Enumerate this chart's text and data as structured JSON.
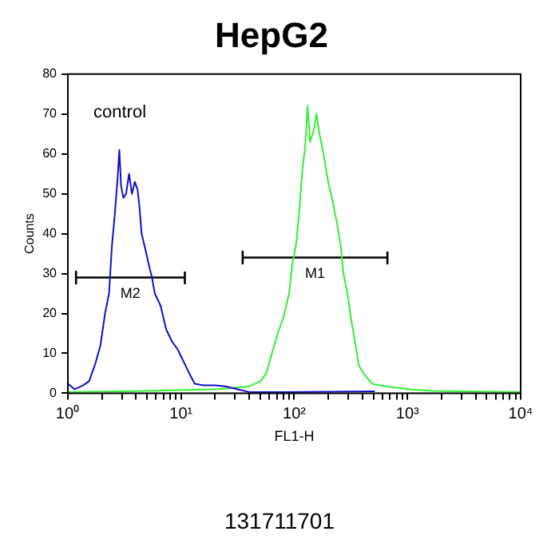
{
  "chart_data": {
    "type": "line",
    "title": "HepG2",
    "xlabel": "FL1-H",
    "ylabel": "Counts",
    "log": "x",
    "grid": false,
    "legend": false,
    "marker": "none",
    "line_style": "solid",
    "xlim": [
      1,
      10000
    ],
    "ylim": [
      0,
      80
    ],
    "xticks": [
      {
        "value": 1,
        "label": "10⁰"
      },
      {
        "value": 2,
        "label": null
      },
      {
        "value": 3,
        "label": null
      },
      {
        "value": 4,
        "label": null
      },
      {
        "value": 5,
        "label": null
      },
      {
        "value": 6,
        "label": null
      },
      {
        "value": 7,
        "label": null
      },
      {
        "value": 8,
        "label": null
      },
      {
        "value": 9,
        "label": null
      },
      {
        "value": 10,
        "label": "10¹"
      },
      {
        "value": 20,
        "label": null
      },
      {
        "value": 30,
        "label": null
      },
      {
        "value": 40,
        "label": null
      },
      {
        "value": 50,
        "label": null
      },
      {
        "value": 60,
        "label": null
      },
      {
        "value": 70,
        "label": null
      },
      {
        "value": 80,
        "label": null
      },
      {
        "value": 90,
        "label": null
      },
      {
        "value": 100,
        "label": "10²"
      },
      {
        "value": 200,
        "label": null
      },
      {
        "value": 300,
        "label": null
      },
      {
        "value": 400,
        "label": null
      },
      {
        "value": 500,
        "label": null
      },
      {
        "value": 600,
        "label": null
      },
      {
        "value": 700,
        "label": null
      },
      {
        "value": 800,
        "label": null
      },
      {
        "value": 900,
        "label": null
      },
      {
        "value": 1000,
        "label": "10³"
      },
      {
        "value": 2000,
        "label": null
      },
      {
        "value": 3000,
        "label": null
      },
      {
        "value": 4000,
        "label": null
      },
      {
        "value": 5000,
        "label": null
      },
      {
        "value": 6000,
        "label": null
      },
      {
        "value": 7000,
        "label": null
      },
      {
        "value": 8000,
        "label": null
      },
      {
        "value": 9000,
        "label": null
      },
      {
        "value": 10000,
        "label": "10⁴"
      }
    ],
    "yticks": [
      0,
      10,
      20,
      30,
      40,
      50,
      60,
      70,
      80
    ],
    "series": [
      {
        "color": "#1010c8",
        "x": [
          1,
          1.15,
          1.37,
          1.54,
          1.73,
          1.94,
          2.13,
          2.31,
          2.45,
          2.6,
          2.75,
          2.85,
          2.95,
          3.09,
          3.27,
          3.47,
          3.68,
          3.9,
          4.13,
          4.28,
          4.48,
          4.75,
          5.21,
          5.53,
          5.86,
          6.58,
          7.39,
          8.3,
          9.33,
          10.5,
          11.8,
          13.2,
          15.7,
          19.9,
          25.1,
          31.6,
          39.9,
          90,
          515
        ],
        "values": [
          2.4,
          1,
          2,
          3,
          7,
          12,
          20,
          25,
          37,
          45,
          54,
          61,
          52,
          49,
          50,
          55,
          50,
          53,
          51,
          47,
          40,
          37,
          32,
          29,
          25,
          22,
          16,
          13,
          11,
          8,
          5,
          2.4,
          2,
          2,
          1.7,
          1,
          0.3,
          0.3,
          0.5
        ]
      },
      {
        "color": "#33ee33",
        "x": [
          1,
          4.9,
          19.9,
          39.9,
          50.3,
          56.6,
          63.5,
          71.4,
          80.2,
          90.1,
          95.5,
          103.5,
          111,
          118,
          125,
          131,
          138,
          149,
          157,
          167,
          181,
          199,
          215,
          237,
          257,
          272,
          295,
          316,
          343,
          372,
          408,
          486,
          650,
          1035,
          1648,
          10000
        ],
        "values": [
          0.3,
          0.6,
          1,
          1.7,
          3,
          5,
          10,
          15,
          19,
          25,
          32,
          37,
          46,
          56,
          62,
          72,
          63,
          66,
          70,
          65,
          60,
          53,
          49,
          43,
          37,
          30,
          25,
          19,
          13,
          7,
          5,
          2.4,
          1.7,
          1,
          0.6,
          0.3
        ]
      },
      {
        "name": "M2",
        "color": "#000000",
        "x": [
          1.18,
          1.18,
          1.18,
          10.8,
          10.8,
          10.8
        ],
        "values": [
          30.5,
          27.5,
          29,
          29,
          27.5,
          30.5
        ]
      },
      {
        "name": "M1",
        "color": "#000000",
        "x": [
          35,
          35,
          35,
          665,
          665,
          665
        ],
        "values": [
          35.5,
          32.5,
          34,
          34,
          32.5,
          35.5
        ]
      }
    ],
    "annotations": [
      "control",
      "131711701"
    ]
  }
}
